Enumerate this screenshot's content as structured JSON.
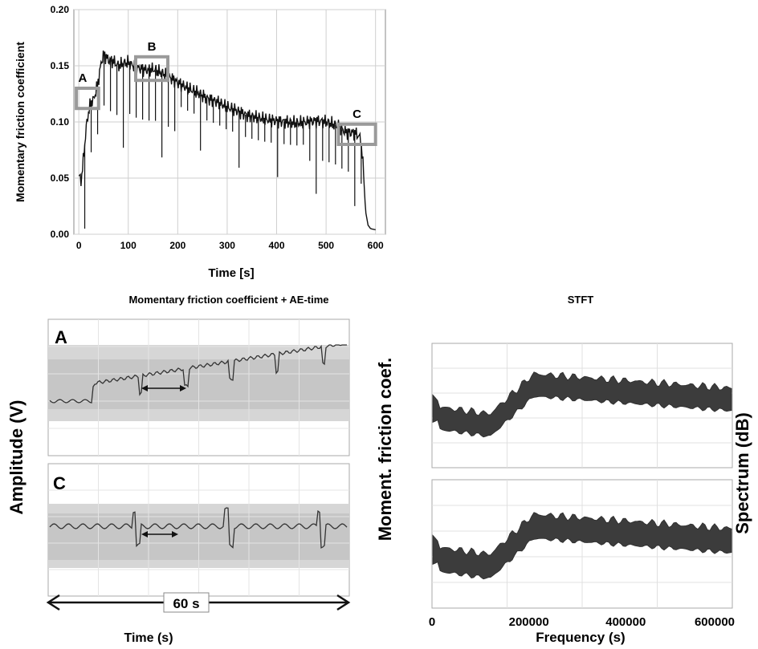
{
  "chart_data": [
    {
      "type": "line",
      "title": "",
      "xlabel": "Time  [s]",
      "ylabel": "Momentary friction coefficient",
      "xlim": [
        -10,
        620
      ],
      "ylim": [
        0,
        0.2
      ],
      "x_ticks": [
        "0",
        "100",
        "200",
        "300",
        "400",
        "500",
        "600"
      ],
      "y_ticks": [
        "0.00",
        "0.05",
        "0.10",
        "0.15",
        "0.20"
      ],
      "grid": true,
      "annotations": [
        {
          "label": "A",
          "x": [
            -5,
            40
          ],
          "y": [
            0.112,
            0.13
          ]
        },
        {
          "label": "B",
          "x": [
            115,
            180
          ],
          "y": [
            0.137,
            0.158
          ]
        },
        {
          "label": "C",
          "x": [
            525,
            600
          ],
          "y": [
            0.08,
            0.098
          ]
        }
      ],
      "series": [
        {
          "x": [
            0,
            5,
            10,
            15,
            20,
            25,
            30,
            35,
            40,
            45,
            50,
            55,
            60,
            70,
            80,
            90,
            100,
            110,
            120,
            130,
            140,
            150,
            160,
            170,
            180,
            190,
            200,
            220,
            240,
            260,
            280,
            300,
            320,
            340,
            360,
            380,
            400,
            420,
            440,
            460,
            480,
            500,
            520,
            540,
            560,
            570,
            575,
            580,
            585,
            590,
            600
          ],
          "y": [
            0.052,
            0.048,
            0.07,
            0.095,
            0.11,
            0.118,
            0.12,
            0.128,
            0.138,
            0.152,
            0.16,
            0.158,
            0.155,
            0.154,
            0.15,
            0.152,
            0.153,
            0.15,
            0.148,
            0.147,
            0.146,
            0.147,
            0.145,
            0.143,
            0.141,
            0.138,
            0.135,
            0.13,
            0.126,
            0.121,
            0.118,
            0.113,
            0.11,
            0.106,
            0.104,
            0.102,
            0.101,
            0.1,
            0.099,
            0.1,
            0.101,
            0.1,
            0.097,
            0.091,
            0.09,
            0.085,
            0.06,
            0.02,
            0.008,
            0.005,
            0.004
          ]
        }
      ]
    },
    {
      "type": "line",
      "title": "Momentary friction coefficient + AE-time",
      "panels": [
        "A",
        "C"
      ],
      "xlabel": "Time  (s)",
      "ylabel_left": "Amplitude   (V)",
      "ylabel_right": "Moment. friction coef.",
      "span_label": "60 s"
    },
    {
      "type": "area",
      "title": "STFT",
      "xlabel": "Frequency  (s)",
      "ylabel": "Spectrum  (dB)",
      "x_ticks": [
        "0",
        "200000",
        "400000",
        "600000"
      ],
      "xlim": [
        0,
        620000
      ]
    }
  ]
}
